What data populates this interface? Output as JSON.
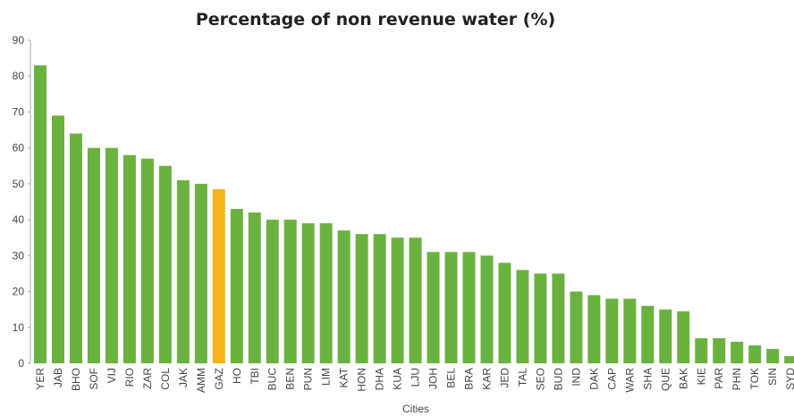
{
  "chart_data": {
    "type": "bar",
    "title": "Percentage of non revenue water (%)",
    "x_label": "Cities",
    "categories": [
      "YER",
      "JAB",
      "BHO",
      "SOF",
      "VIJ",
      "RIO",
      "ZAR",
      "COL",
      "JAK",
      "AMM",
      "GAZ",
      "HO",
      "TBI",
      "BUC",
      "BEN",
      "PUN",
      "LIM",
      "KAT",
      "HON",
      "DHA",
      "KUA",
      "LJU",
      "JOH",
      "BEL",
      "BRA",
      "KAR",
      "JED",
      "TAL",
      "SEO",
      "BUD",
      "IND",
      "DAK",
      "CAP",
      "WAR",
      "SHA",
      "QUE",
      "BAK",
      "KIE",
      "PAR",
      "PHN",
      "TOK",
      "SIN",
      "SYD"
    ],
    "values": [
      83,
      69,
      64,
      60,
      60,
      58,
      57,
      55,
      51,
      50,
      48.5,
      43,
      42,
      40,
      40,
      39,
      39,
      37,
      36,
      36,
      35,
      35,
      31,
      31,
      31,
      30,
      28,
      26,
      25,
      25,
      20,
      19,
      18,
      18,
      16,
      15,
      14.5,
      7,
      7,
      6,
      5,
      4,
      2
    ],
    "colors": [
      "#6ab23e",
      "#6ab23e",
      "#6ab23e",
      "#6ab23e",
      "#6ab23e",
      "#6ab23e",
      "#6ab23e",
      "#6ab23e",
      "#6ab23e",
      "#6ab23e",
      "#f7b318",
      "#6ab23e",
      "#6ab23e",
      "#6ab23e",
      "#6ab23e",
      "#6ab23e",
      "#6ab23e",
      "#6ab23e",
      "#6ab23e",
      "#6ab23e",
      "#6ab23e",
      "#6ab23e",
      "#6ab23e",
      "#6ab23e",
      "#6ab23e",
      "#6ab23e",
      "#6ab23e",
      "#6ab23e",
      "#6ab23e",
      "#6ab23e",
      "#6ab23e",
      "#6ab23e",
      "#6ab23e",
      "#6ab23e",
      "#6ab23e",
      "#6ab23e",
      "#6ab23e",
      "#6ab23e",
      "#6ab23e",
      "#6ab23e",
      "#6ab23e",
      "#6ab23e",
      "#6ab23e"
    ],
    "ylim": [
      0,
      90
    ],
    "yticks": [
      0,
      10,
      20,
      30,
      40,
      50,
      60,
      70,
      80,
      90
    ],
    "grid": false
  }
}
